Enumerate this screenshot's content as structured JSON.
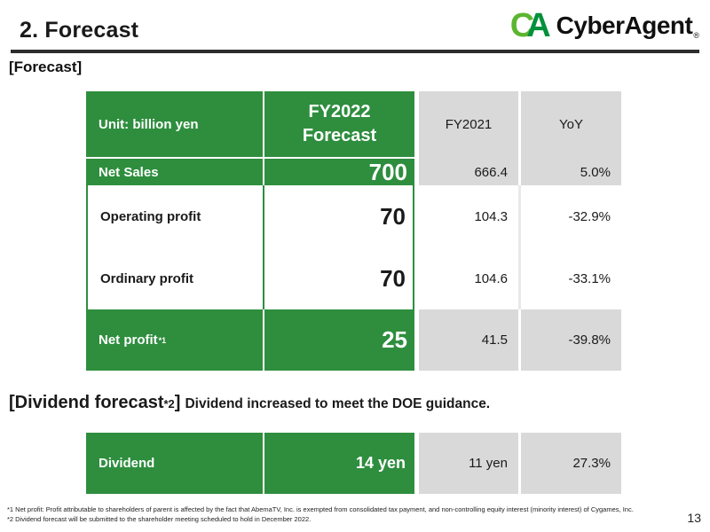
{
  "slide": {
    "title": "2. Forecast",
    "page_number": "13"
  },
  "logo": {
    "mark_c": "C",
    "mark_a": "A",
    "text": "CyberAgent",
    "registered": "®"
  },
  "colors": {
    "green": "#2E8E3E",
    "cell_gray": "#D9D9D9",
    "logo_light_green": "#5CB531",
    "logo_dark_green": "#00913A",
    "ink": "#1A1A1A",
    "rule_dark": "#2E2E2E"
  },
  "forecast_section": {
    "label": "[Forecast]",
    "table": {
      "header": {
        "unit": "Unit: billion yen",
        "col2_line1": "FY2022",
        "col2_line2": "Forecast",
        "col3": "FY2021",
        "col4": "YoY"
      },
      "rows": [
        {
          "label": "Net Sales",
          "note": "",
          "forecast": "700",
          "fy2021": "666.4",
          "yoy": "5.0%"
        },
        {
          "label": "Operating profit",
          "note": "",
          "forecast": "70",
          "fy2021": "104.3",
          "yoy": "-32.9%"
        },
        {
          "label": "Ordinary profit",
          "note": "",
          "forecast": "70",
          "fy2021": "104.6",
          "yoy": "-33.1%"
        },
        {
          "label": "Net profit",
          "note": "*1",
          "forecast": "25",
          "fy2021": "41.5",
          "yoy": "-39.8%"
        }
      ]
    }
  },
  "dividend_section": {
    "label_open": "[Dividend forecast",
    "label_note": "*2",
    "label_close": "]",
    "description": "Dividend increased to meet the DOE guidance.",
    "table": {
      "label": "Dividend",
      "forecast": "14 yen",
      "fy2021": "11 yen",
      "yoy": "27.3%"
    }
  },
  "footnotes": [
    "*1 Net profit: Profit attributable to shareholders of parent is affected by the fact that AbemaTV, Inc. is exempted from consolidated tax payment, and non-controlling equity interest (minority interest) of Cygames, Inc.",
    "*2 Dividend forecast will be submitted to the shareholder meeting scheduled to hold in December 2022."
  ]
}
